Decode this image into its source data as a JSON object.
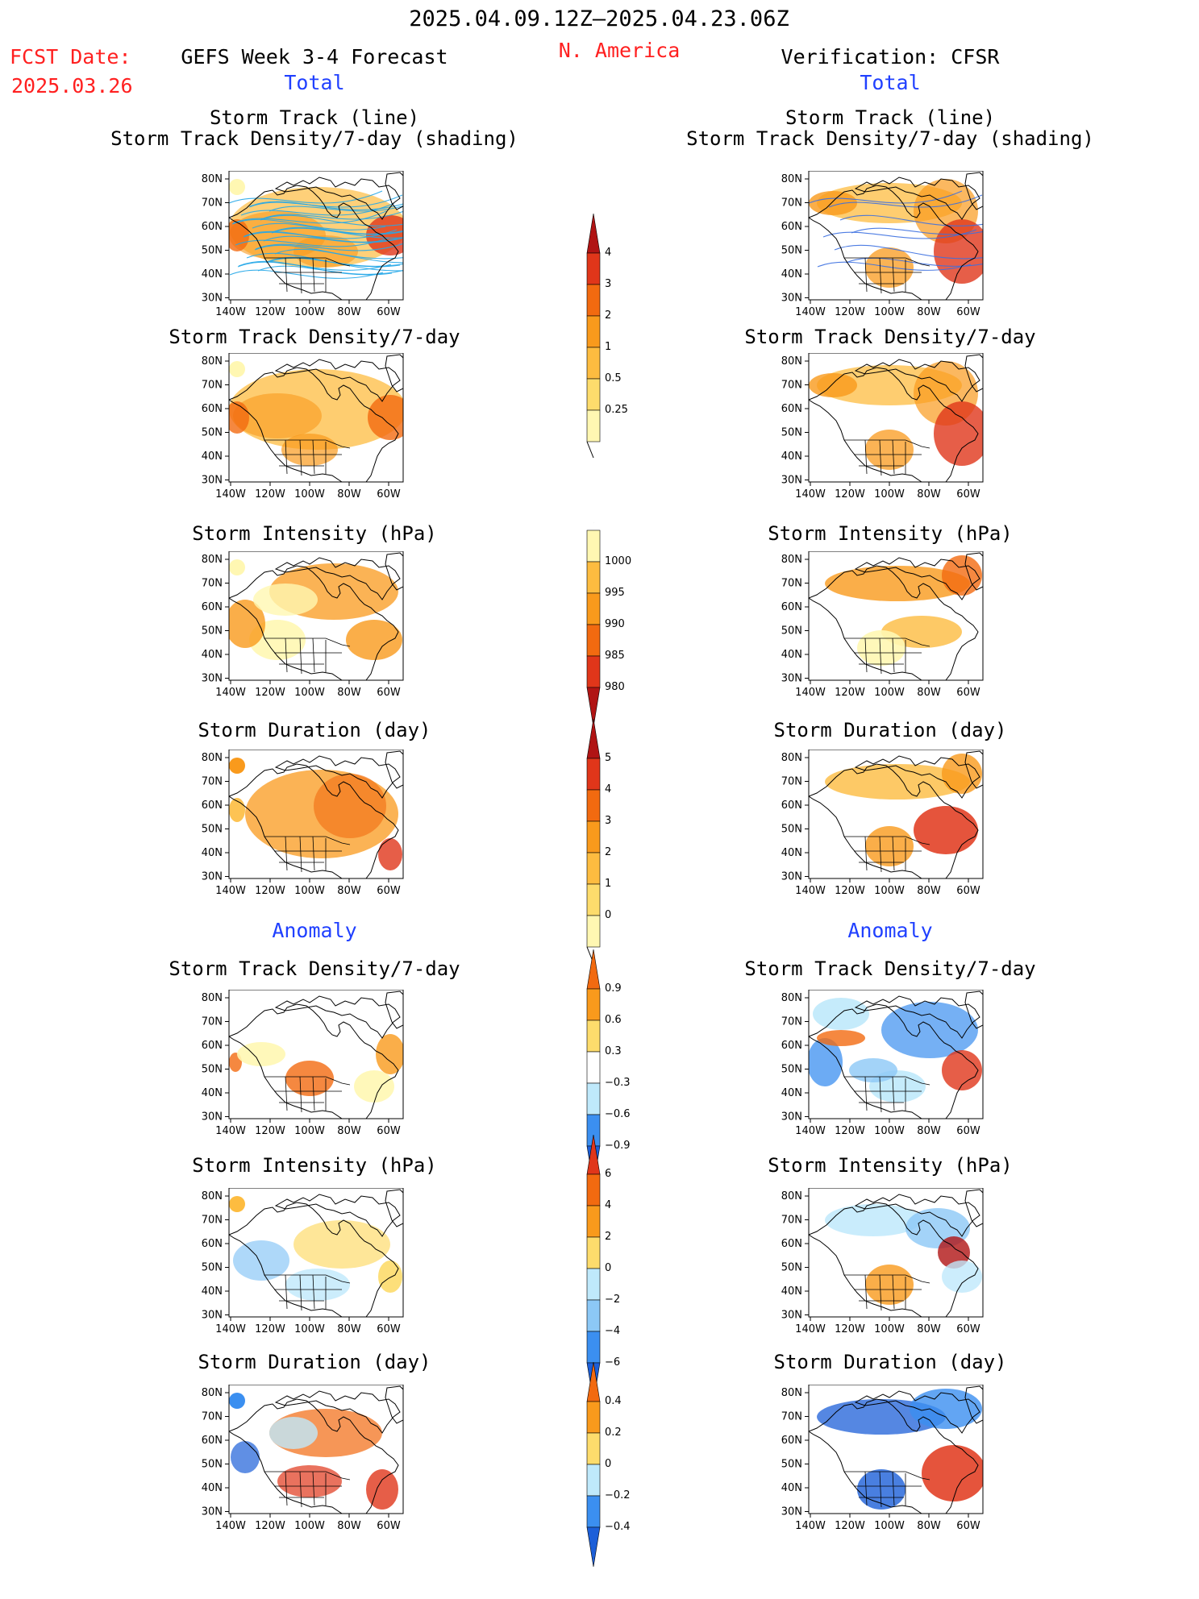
{
  "header": {
    "date_range": "2025.04.09.12Z–2025.04.23.06Z",
    "fcst_label": "FCST Date:",
    "fcst_date": "2025.03.26",
    "forecast_title": "GEFS Week 3-4 Forecast",
    "region": "N. America",
    "verification": "Verification: CFSR"
  },
  "sections": {
    "total": "Total",
    "anomaly": "Anomaly"
  },
  "panel_titles": {
    "track_line": "Storm Track (line)",
    "track_shading": "Storm Track Density/7-day (shading)",
    "density": "Storm Track Density/7-day",
    "intensity": "Storm Intensity (hPa)",
    "duration": "Storm Duration (day)"
  },
  "axes": {
    "lat": [
      "80N",
      "70N",
      "60N",
      "50N",
      "40N",
      "30N"
    ],
    "lon": [
      "140W",
      "120W",
      "100W",
      "80W",
      "60W"
    ]
  },
  "colorbars": {
    "density_total": [
      "4",
      "3",
      "2",
      "1",
      "0.5",
      "0.25"
    ],
    "intensity_total": [
      "1000",
      "995",
      "990",
      "985",
      "980"
    ],
    "duration_total": [
      "5",
      "4",
      "3",
      "2",
      "1",
      "0"
    ],
    "density_anom": [
      "0.9",
      "0.6",
      "0.3",
      "−0.3",
      "−0.6",
      "−0.9"
    ],
    "intensity_anom": [
      "6",
      "4",
      "2",
      "0",
      "−2",
      "−4",
      "−6"
    ],
    "duration_anom": [
      "0.4",
      "0.2",
      "0",
      "−0.2",
      "−0.4"
    ]
  },
  "colors": {
    "light_yellow": "#fff7b2",
    "yellow": "#fddc6c",
    "light_orange": "#fdbc40",
    "orange": "#f99a1c",
    "dark_orange": "#f26a10",
    "red": "#e0361a",
    "dark_red": "#b01414",
    "light_blue": "#bfe9fb",
    "mid_blue": "#8cc8f6",
    "blue": "#3b8ff0",
    "dark_blue": "#1c5fd8",
    "track_line": "#25a7e8"
  }
}
